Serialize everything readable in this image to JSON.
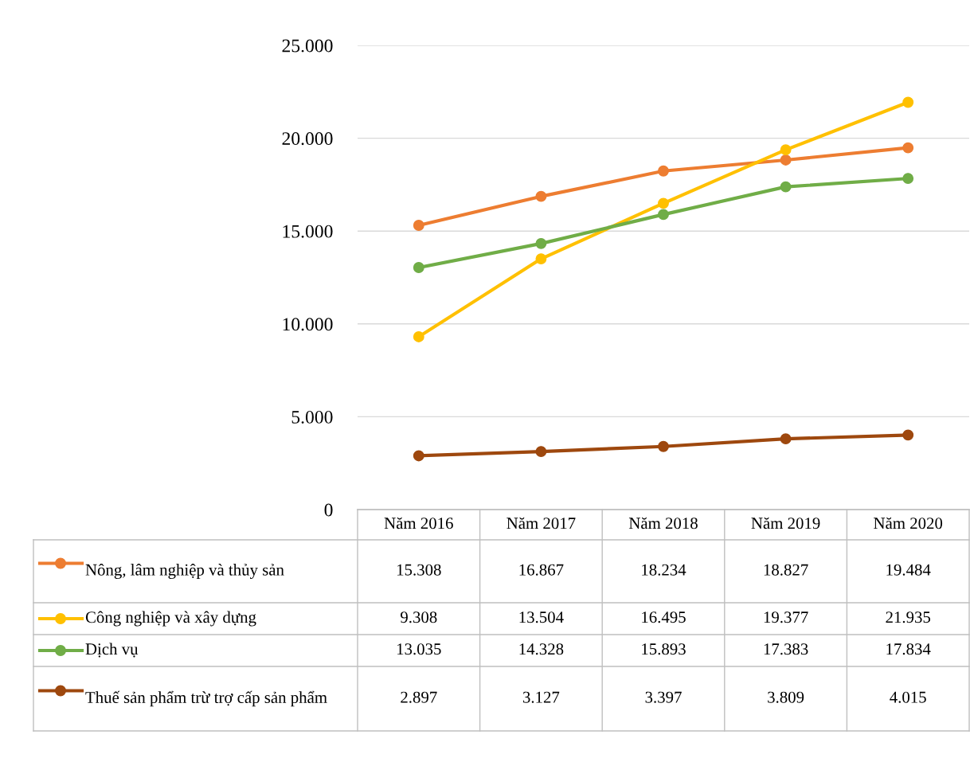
{
  "chart_data": {
    "type": "line",
    "categories": [
      "Năm 2016",
      "Năm 2017",
      "Năm 2018",
      "Năm 2019",
      "Năm 2020"
    ],
    "series": [
      {
        "name": "Nông, lâm nghiệp và thủy sản",
        "color": "#ed7d31",
        "values": [
          15308,
          16867,
          18234,
          18827,
          19484
        ],
        "value_labels": [
          "15.308",
          "16.867",
          "18.234",
          "18.827",
          "19.484"
        ]
      },
      {
        "name": "Công nghiệp và xây dựng",
        "color": "#ffc000",
        "values": [
          9308,
          13504,
          16495,
          19377,
          21935
        ],
        "value_labels": [
          "9.308",
          "13.504",
          "16.495",
          "19.377",
          "21.935"
        ]
      },
      {
        "name": "Dịch vụ",
        "color": "#70ad47",
        "values": [
          13035,
          14328,
          15893,
          17383,
          17834
        ],
        "value_labels": [
          "13.035",
          "14.328",
          "15.893",
          "17.383",
          "17.834"
        ]
      },
      {
        "name": "Thuế sản phẩm trừ trợ cấp sản phẩm",
        "color": "#9e480e",
        "values": [
          2897,
          3127,
          3397,
          3809,
          4015
        ],
        "value_labels": [
          "2.897",
          "3.127",
          "3.397",
          "3.809",
          "4.015"
        ]
      }
    ],
    "ylim": [
      0,
      25000
    ],
    "yticks": [
      {
        "value": 0,
        "label": "0"
      },
      {
        "value": 5000,
        "label": "5.000"
      },
      {
        "value": 10000,
        "label": "10.000"
      },
      {
        "value": 15000,
        "label": "15.000"
      },
      {
        "value": 20000,
        "label": "20.000"
      },
      {
        "value": 25000,
        "label": "25.000"
      }
    ],
    "grid": "y",
    "legend": "bottom",
    "marker": "circle",
    "line_style": "solid"
  }
}
